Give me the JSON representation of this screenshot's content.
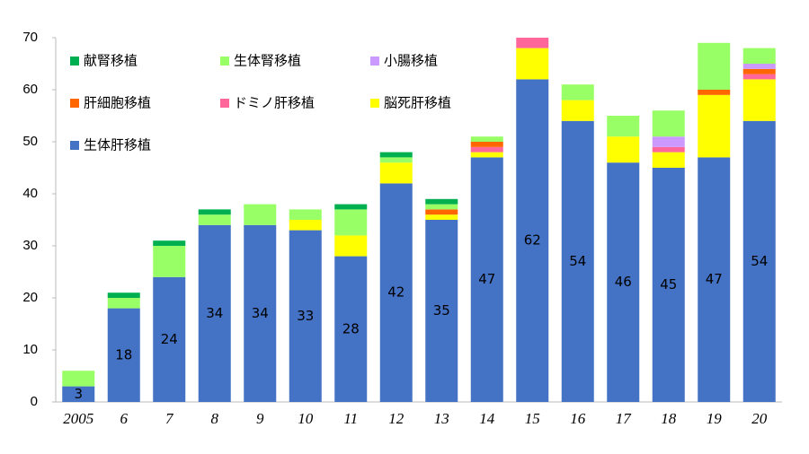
{
  "chart_data": {
    "type": "stacked_bar",
    "categories": [
      "2005",
      "6",
      "7",
      "8",
      "9",
      "10",
      "11",
      "12",
      "13",
      "14",
      "15",
      "16",
      "17",
      "18",
      "19",
      "20"
    ],
    "series": [
      {
        "name": "献腎移植",
        "color": "#00b050",
        "values": [
          0,
          1,
          1,
          1,
          0,
          0,
          1,
          1,
          1,
          0,
          0,
          0,
          0,
          0,
          0,
          0
        ]
      },
      {
        "name": "生体腎移植",
        "color": "#99ff66",
        "values": [
          3,
          2,
          6,
          2,
          4,
          2,
          5,
          1,
          1,
          1,
          0,
          3,
          4,
          5,
          9,
          3
        ]
      },
      {
        "name": "小腸移植",
        "color": "#cc99ff",
        "values": [
          0,
          0,
          0,
          0,
          0,
          0,
          0,
          0,
          0,
          0,
          0,
          0,
          0,
          2,
          0,
          1
        ]
      },
      {
        "name": "肝細胞移植",
        "color": "#ff6600",
        "values": [
          0,
          0,
          0,
          0,
          0,
          0,
          0,
          0,
          1,
          1,
          0,
          0,
          0,
          0,
          1,
          1
        ]
      },
      {
        "name": "ドミノ肝移植",
        "color": "#ff6699",
        "values": [
          0,
          0,
          0,
          0,
          0,
          0,
          0,
          0,
          0,
          1,
          2,
          0,
          0,
          1,
          0,
          1
        ]
      },
      {
        "name": "脳死肝移植",
        "color": "#ffff00",
        "values": [
          0,
          0,
          0,
          0,
          0,
          2,
          4,
          4,
          1,
          1,
          6,
          4,
          5,
          3,
          12,
          8
        ]
      },
      {
        "name": "生体肝移植",
        "color": "#4472c4",
        "values": [
          3,
          18,
          24,
          34,
          34,
          33,
          28,
          42,
          35,
          47,
          62,
          54,
          46,
          45,
          47,
          54
        ],
        "data_labels": true
      }
    ],
    "ylim": [
      0,
      70
    ],
    "yticks": [
      0,
      10,
      20,
      30,
      40,
      50,
      60,
      70
    ],
    "grid": false
  }
}
